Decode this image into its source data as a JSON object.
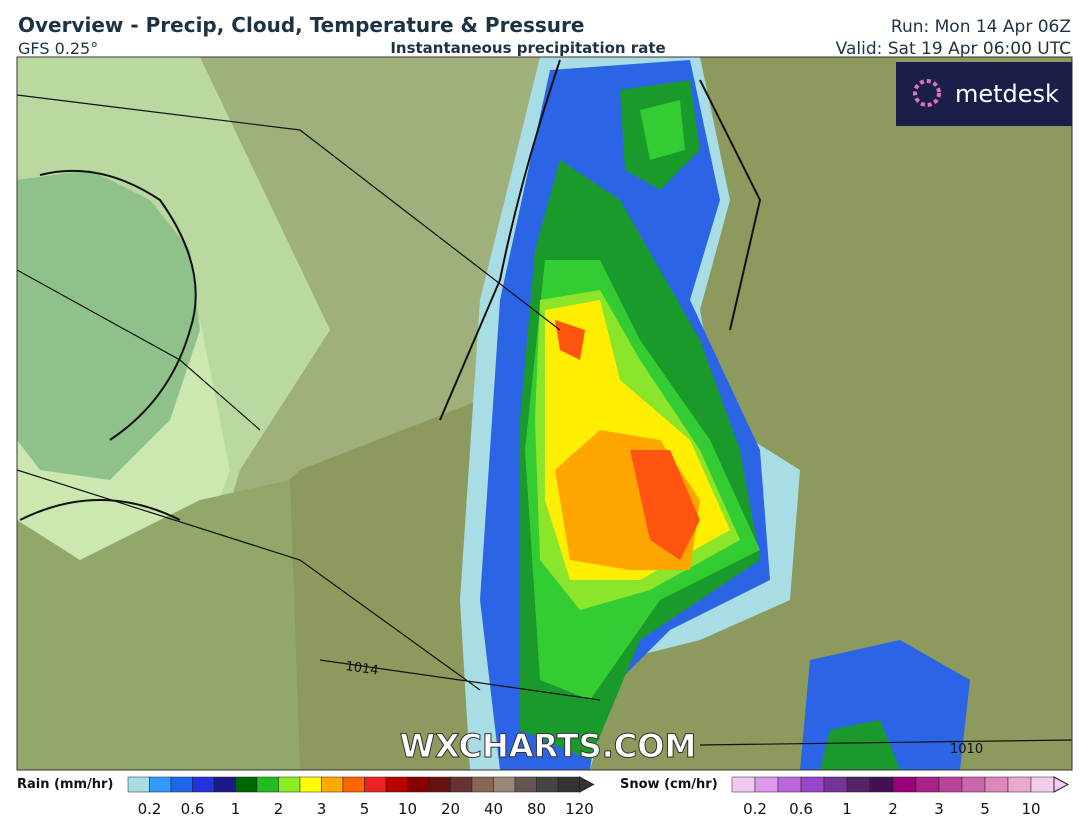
{
  "header": {
    "title": "Overview - Precip, Cloud, Temperature & Pressure",
    "model": "GFS 0.25°",
    "subtitle": "Instantaneous precipitation rate",
    "run": "Run: Mon 14 Apr 06Z",
    "valid": "Valid: Sat 19 Apr 06:00 UTC"
  },
  "map": {
    "logo": "metdesk",
    "watermark": "WXCHARTS.COM",
    "isobars": [
      {
        "label": "1014"
      },
      {
        "label": "1010"
      }
    ]
  },
  "legend": {
    "rain": {
      "label": "Rain (mm/hr)",
      "ticks": [
        "0.2",
        "0.6",
        "1",
        "2",
        "3",
        "5",
        "10",
        "20",
        "40",
        "80",
        "120"
      ],
      "colors": [
        "#a8dde6",
        "#3399ff",
        "#1f66ee",
        "#2233dd",
        "#1a1a88",
        "#006600",
        "#22bb22",
        "#88ee22",
        "#ffff00",
        "#ffaa00",
        "#ff6600",
        "#ee2222",
        "#bb0000",
        "#880000",
        "#661111",
        "#663333",
        "#886655",
        "#998877",
        "#665555",
        "#444444",
        "#333333"
      ]
    },
    "snow": {
      "label": "Snow (cm/hr)",
      "ticks": [
        "0.2",
        "0.6",
        "1",
        "2",
        "3",
        "5",
        "10"
      ],
      "colors": [
        "#f0c8f0",
        "#dd99ee",
        "#bb66dd",
        "#9944cc",
        "#773399",
        "#552266",
        "#441155",
        "#990077",
        "#aa2288",
        "#bb4499",
        "#cc66aa",
        "#dd88bb",
        "#e8aad0",
        "#f4ccee"
      ]
    }
  }
}
